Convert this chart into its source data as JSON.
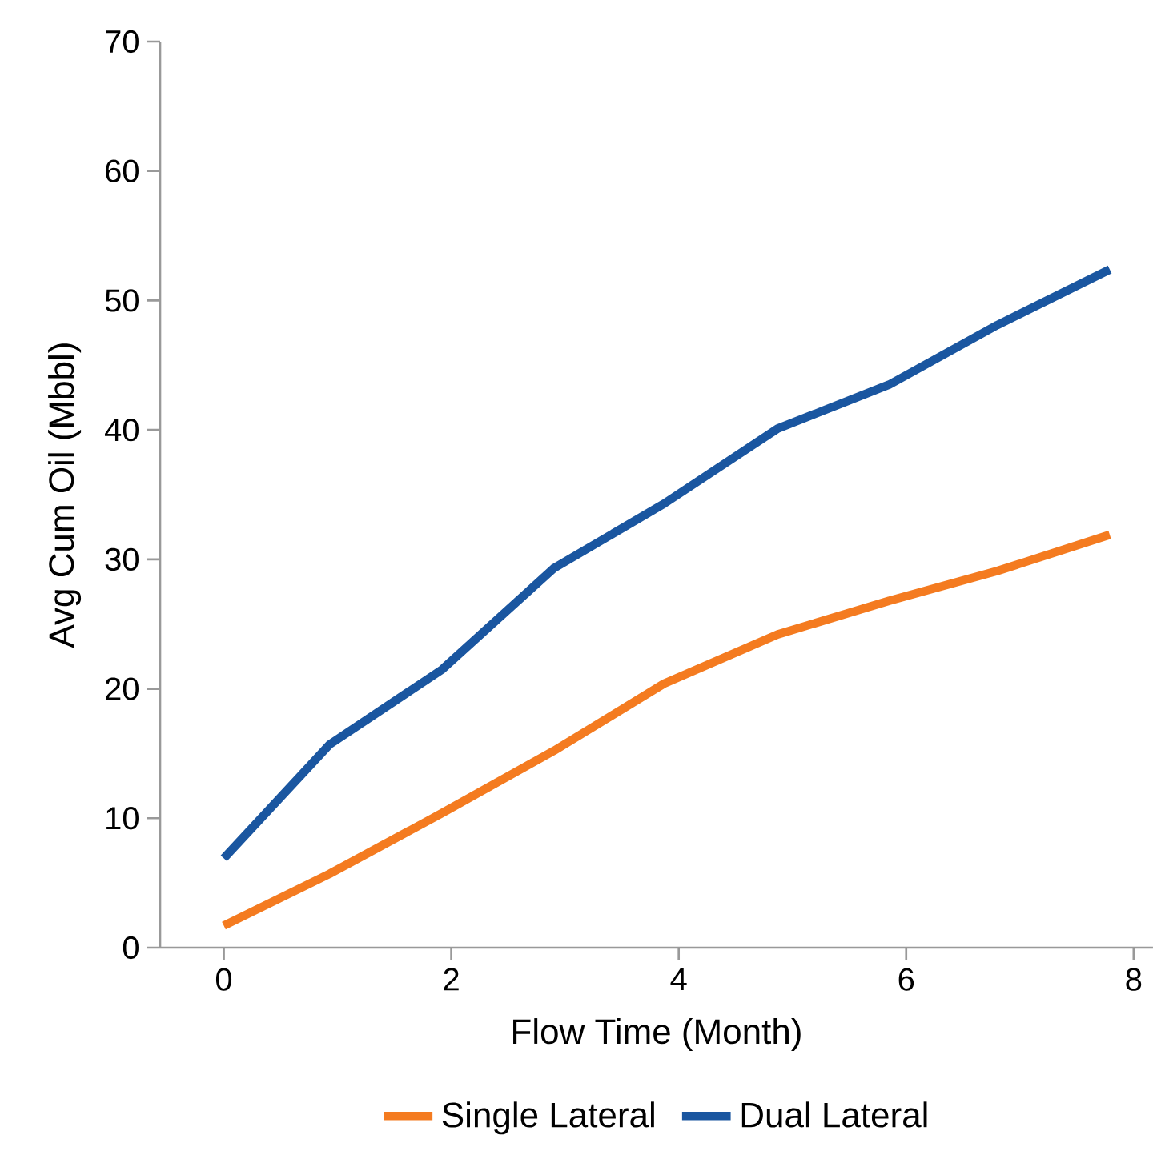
{
  "chart_data": {
    "type": "line",
    "xlabel": "Flow Time (Month)",
    "ylabel": "Avg Cum Oil (Mbbl)",
    "x": [
      0,
      0.93,
      1.92,
      2.9,
      3.87,
      4.87,
      5.85,
      6.8,
      7.79
    ],
    "series": [
      {
        "name": "Single Lateral",
        "color": "#f47b20",
        "values": [
          1.7,
          5.7,
          10.4,
          15.2,
          20.4,
          24.2,
          26.8,
          29.1,
          31.9
        ]
      },
      {
        "name": "Dual Lateral",
        "color": "#1a56a0",
        "values": [
          6.9,
          15.7,
          21.5,
          29.3,
          34.3,
          40.1,
          43.5,
          48.1,
          52.4
        ]
      }
    ],
    "xlim": [
      -0.56,
      8.17
    ],
    "ylim": [
      0,
      70
    ],
    "xticks": [
      0,
      2,
      4,
      6,
      8
    ],
    "yticks": [
      0,
      10,
      20,
      30,
      40,
      50,
      60,
      70
    ],
    "grid": false,
    "legend": "bottom",
    "marker": "none",
    "line_style": "solid"
  }
}
